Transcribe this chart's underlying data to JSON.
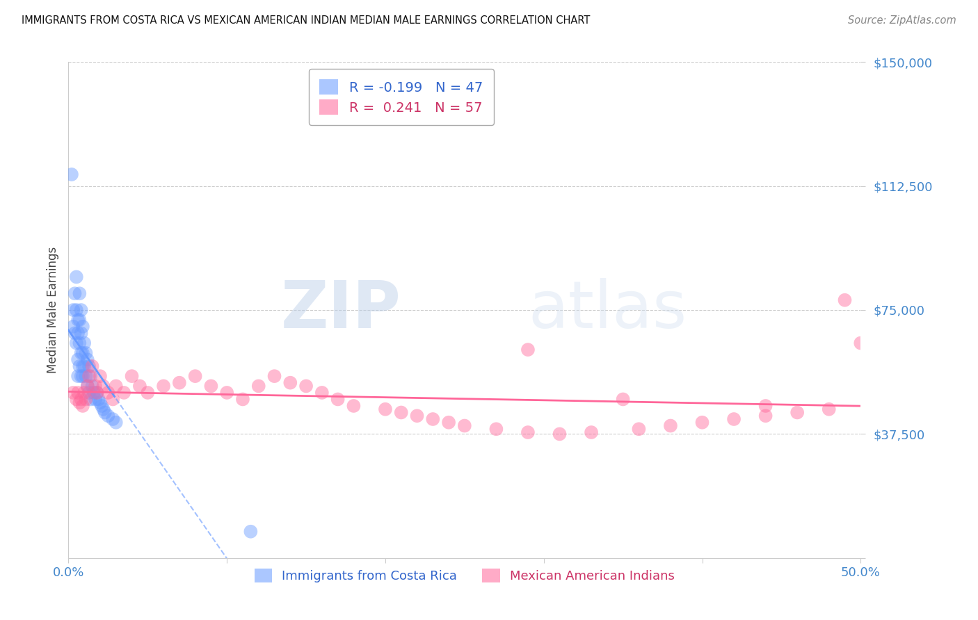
{
  "title": "IMMIGRANTS FROM COSTA RICA VS MEXICAN AMERICAN INDIAN MEDIAN MALE EARNINGS CORRELATION CHART",
  "source": "Source: ZipAtlas.com",
  "ylabel_label": "Median Male Earnings",
  "xlim": [
    0.0,
    0.5
  ],
  "ylim": [
    0,
    150000
  ],
  "yticks": [
    0,
    37500,
    75000,
    112500,
    150000
  ],
  "ytick_labels": [
    "",
    "$37,500",
    "$75,000",
    "$112,500",
    "$150,000"
  ],
  "xticks": [
    0.0,
    0.1,
    0.2,
    0.3,
    0.4,
    0.5
  ],
  "xtick_labels": [
    "0.0%",
    "",
    "",
    "",
    "",
    "50.0%"
  ],
  "grid_color": "#cccccc",
  "background_color": "#ffffff",
  "blue_color": "#6699ff",
  "pink_color": "#ff6699",
  "blue_R": -0.199,
  "blue_N": 47,
  "pink_R": 0.241,
  "pink_N": 57,
  "legend1_label": "Immigrants from Costa Rica",
  "legend2_label": "Mexican American Indians",
  "watermark_zip": "ZIP",
  "watermark_atlas": "atlas",
  "blue_scatter_x": [
    0.002,
    0.003,
    0.003,
    0.004,
    0.004,
    0.005,
    0.005,
    0.005,
    0.006,
    0.006,
    0.006,
    0.007,
    0.007,
    0.007,
    0.007,
    0.008,
    0.008,
    0.008,
    0.008,
    0.009,
    0.009,
    0.009,
    0.01,
    0.01,
    0.011,
    0.011,
    0.012,
    0.012,
    0.013,
    0.013,
    0.014,
    0.014,
    0.015,
    0.016,
    0.017,
    0.018,
    0.019,
    0.02,
    0.021,
    0.022,
    0.023,
    0.025,
    0.028,
    0.03,
    0.115,
    0.006,
    0.009
  ],
  "blue_scatter_y": [
    116000,
    75000,
    70000,
    80000,
    68000,
    85000,
    75000,
    65000,
    72000,
    68000,
    60000,
    80000,
    72000,
    65000,
    58000,
    75000,
    68000,
    62000,
    55000,
    70000,
    62000,
    55000,
    65000,
    58000,
    62000,
    55000,
    60000,
    52000,
    58000,
    50000,
    55000,
    48000,
    52000,
    50000,
    48000,
    50000,
    48000,
    47000,
    46000,
    45000,
    44000,
    43000,
    42000,
    41000,
    8000,
    55000,
    58000
  ],
  "pink_scatter_x": [
    0.003,
    0.005,
    0.006,
    0.007,
    0.008,
    0.009,
    0.01,
    0.011,
    0.012,
    0.013,
    0.015,
    0.017,
    0.018,
    0.02,
    0.022,
    0.025,
    0.028,
    0.03,
    0.035,
    0.04,
    0.045,
    0.05,
    0.06,
    0.07,
    0.08,
    0.09,
    0.1,
    0.11,
    0.12,
    0.13,
    0.14,
    0.15,
    0.16,
    0.17,
    0.18,
    0.2,
    0.21,
    0.22,
    0.23,
    0.24,
    0.25,
    0.27,
    0.29,
    0.31,
    0.33,
    0.36,
    0.38,
    0.4,
    0.42,
    0.44,
    0.46,
    0.48,
    0.49,
    0.5,
    0.29,
    0.35,
    0.44
  ],
  "pink_scatter_y": [
    50000,
    48000,
    50000,
    47000,
    48000,
    46000,
    50000,
    48000,
    52000,
    55000,
    58000,
    52000,
    50000,
    55000,
    52000,
    50000,
    48000,
    52000,
    50000,
    55000,
    52000,
    50000,
    52000,
    53000,
    55000,
    52000,
    50000,
    48000,
    52000,
    55000,
    53000,
    52000,
    50000,
    48000,
    46000,
    45000,
    44000,
    43000,
    42000,
    41000,
    40000,
    39000,
    38000,
    37500,
    38000,
    39000,
    40000,
    41000,
    42000,
    43000,
    44000,
    45000,
    78000,
    65000,
    63000,
    48000,
    46000
  ]
}
